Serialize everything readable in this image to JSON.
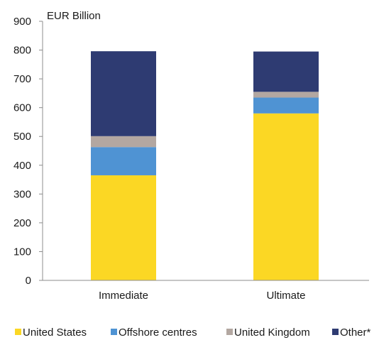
{
  "chart_data": {
    "type": "bar",
    "stacked": true,
    "unit_label": "EUR Billion",
    "categories": [
      "Immediate",
      "Ultimate"
    ],
    "series": [
      {
        "name": "United States",
        "values": [
          365,
          580
        ],
        "color": "#fbd724"
      },
      {
        "name": "Offshore centres",
        "values": [
          98,
          55
        ],
        "color": "#4f93d3"
      },
      {
        "name": "United Kingdom",
        "values": [
          38,
          20
        ],
        "color": "#b3a7a1"
      },
      {
        "name": "Other*",
        "values": [
          295,
          140
        ],
        "color": "#2e3b72"
      }
    ],
    "yticks": [
      0,
      100,
      200,
      300,
      400,
      500,
      600,
      700,
      800,
      900
    ],
    "ylim": [
      0,
      900
    ],
    "grid": false,
    "legend_position": "bottom"
  }
}
